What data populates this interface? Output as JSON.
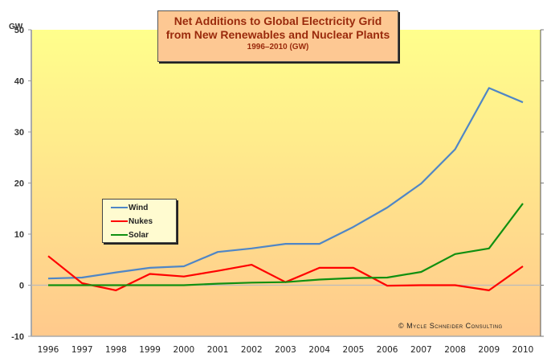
{
  "chart_data": {
    "type": "line",
    "title": "Net Additions to Global Electricity Grid from New Renewables and Nuclear Plants",
    "title_line1": "Net Additions to Global Electricity Grid",
    "title_line2": "from New Renewables and Nuclear Plants",
    "subtitle": "1996–2010 (GW)",
    "ylabel": "GW",
    "xlabel": "",
    "x": [
      "1996",
      "1997",
      "1998",
      "1999",
      "2000",
      "2001",
      "2002",
      "2003",
      "2004",
      "2005",
      "2006",
      "2007",
      "2008",
      "2009",
      "2010"
    ],
    "ylim": [
      -10,
      50
    ],
    "yticks": [
      "-10",
      "0",
      "10",
      "20",
      "30",
      "40",
      "50"
    ],
    "ytick_values": [
      -10,
      0,
      10,
      20,
      30,
      40,
      50
    ],
    "grid": false,
    "legend_position": "center-left",
    "series": [
      {
        "name": "Wind",
        "color": "#4f86c6",
        "values": [
          1.3,
          1.5,
          2.5,
          3.4,
          3.7,
          6.5,
          7.2,
          8.1,
          8.1,
          11.4,
          15.2,
          19.9,
          26.6,
          38.6,
          35.8
        ]
      },
      {
        "name": "Nukes",
        "color": "#ff0000",
        "values": [
          5.7,
          0.4,
          -1.0,
          2.2,
          1.7,
          2.8,
          4.0,
          0.6,
          3.4,
          3.4,
          -0.1,
          0.0,
          0.0,
          -1.0,
          3.7
        ]
      },
      {
        "name": "Solar",
        "color": "#109010",
        "values": [
          0.0,
          0.0,
          0.0,
          0.0,
          0.0,
          0.3,
          0.5,
          0.6,
          1.1,
          1.4,
          1.5,
          2.6,
          6.1,
          7.2,
          16.0
        ]
      }
    ],
    "annotation": "© Mycle Schneider Consulting"
  }
}
